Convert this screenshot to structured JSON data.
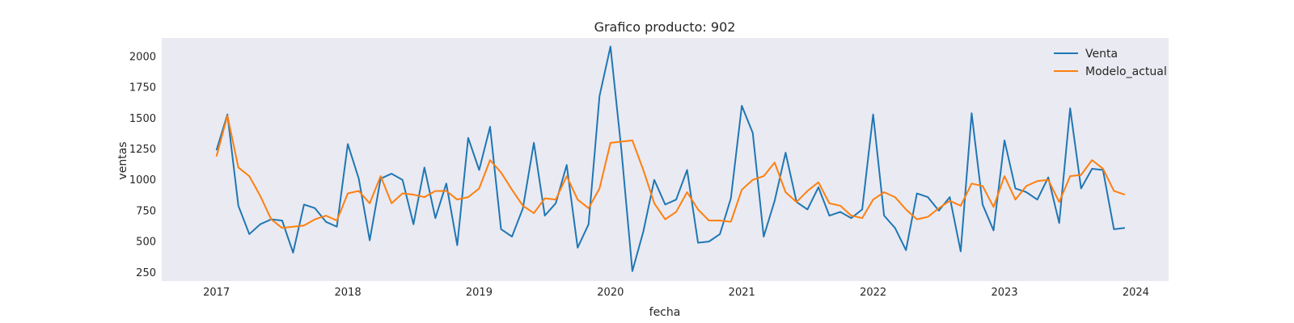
{
  "chart_data": {
    "type": "line",
    "title": "Grafico producto: 902",
    "xlabel": "fecha",
    "ylabel": "ventas",
    "x_start": "2017-01",
    "x_ticks": [
      "2017",
      "2018",
      "2019",
      "2020",
      "2021",
      "2022",
      "2023",
      "2024"
    ],
    "y_ticks": [
      250,
      500,
      750,
      1000,
      1250,
      1500,
      1750,
      2000
    ],
    "xlim": [
      "2016-08",
      "2024-04"
    ],
    "ylim": [
      180,
      2150
    ],
    "grid": false,
    "background": "#eaeaf2",
    "legend": "top-right",
    "series": [
      {
        "name": "Venta",
        "color": "#1f77b4",
        "values": [
          1240,
          1530,
          790,
          560,
          640,
          680,
          670,
          410,
          800,
          770,
          660,
          620,
          1290,
          1010,
          510,
          1010,
          1050,
          1000,
          640,
          1100,
          690,
          970,
          470,
          1340,
          1080,
          1430,
          600,
          540,
          770,
          1300,
          710,
          810,
          1120,
          450,
          640,
          1680,
          2080,
          1240,
          260,
          580,
          1000,
          800,
          840,
          1080,
          490,
          500,
          560,
          850,
          1600,
          1380,
          540,
          830,
          1220,
          820,
          760,
          940,
          710,
          740,
          690,
          760,
          1530,
          710,
          610,
          430,
          890,
          860,
          750,
          860,
          420,
          1540,
          800,
          590,
          1320,
          930,
          900,
          840,
          1020,
          650,
          1580,
          930,
          1090,
          1080,
          600,
          610
        ]
      },
      {
        "name": "Modelo_actual",
        "color": "#ff7f0e",
        "values": [
          1190,
          1520,
          1100,
          1030,
          870,
          680,
          610,
          620,
          630,
          680,
          710,
          670,
          890,
          910,
          810,
          1030,
          810,
          890,
          880,
          860,
          910,
          910,
          840,
          860,
          930,
          1160,
          1060,
          920,
          790,
          730,
          850,
          840,
          1030,
          840,
          770,
          930,
          1300,
          1310,
          1320,
          1080,
          810,
          680,
          740,
          900,
          760,
          670,
          670,
          660,
          920,
          1000,
          1030,
          1140,
          900,
          820,
          910,
          980,
          810,
          790,
          710,
          690,
          840,
          900,
          860,
          760,
          680,
          700,
          770,
          830,
          790,
          970,
          950,
          780,
          1030,
          840,
          950,
          990,
          1000,
          820,
          1030,
          1040,
          1160,
          1090,
          910,
          880
        ]
      }
    ]
  }
}
